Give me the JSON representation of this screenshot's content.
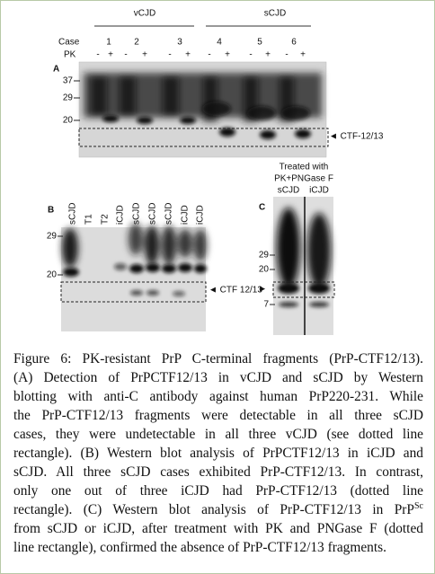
{
  "panel_a": {
    "label": "A",
    "groups": [
      "vCJD",
      "sCJD"
    ],
    "case_label": "Case",
    "cases": [
      "1",
      "2",
      "3",
      "4",
      "5",
      "6"
    ],
    "pk_label": "PK",
    "pk": [
      "-",
      "+",
      "-",
      "+",
      "-",
      "+",
      "-",
      "+",
      "-",
      "+",
      "-",
      "+"
    ],
    "markers": [
      "37",
      "29",
      "20"
    ],
    "annotation": "◄ CTF-12/13"
  },
  "panel_b": {
    "label": "B",
    "lanes": [
      "sCJD",
      "T1",
      "T2",
      "iCJD",
      "sCJD",
      "sCJD",
      "sCJD",
      "iCJD",
      "iCJD"
    ],
    "markers": [
      "29",
      "20"
    ],
    "annotation": "◄ CTF 12/13"
  },
  "panel_c": {
    "label": "C",
    "header": [
      "Treated with",
      "PK+PNGase F"
    ],
    "lanes": [
      "sCJD",
      "iCJD"
    ],
    "markers": [
      "29",
      "20",
      "7"
    ],
    "arrow": "►"
  },
  "caption": {
    "lines": [
      "Figure 6: PK-resistant PrP C-terminal fragments (PrP-CTF12/13).",
      "(A) Detection of PrPCTF12/13 in vCJD and sCJD by Western",
      "blotting with anti-C antibody against human PrP220-231. While",
      "the PrP-CTF12/13 fragments were detectable in all three sCJD",
      "cases, they were undetectable in all three vCJD (see dotted line",
      "rectangle). (B) Western blot analysis of PrPCTF12/13 in iCJD and",
      "sCJD. All three sCJD cases exhibited PrP-CTF12/13. In contrast,",
      "only one out of three iCJD had PrP-CTF12/13 (dotted line",
      "rectangle). (C) Western blot analysis of PrP-CTF12/13 in PrP",
      "from sCJD or iCJD, after treatment with PK and PNGase F (dotted",
      "line rectangle), confirmed the absence of PrP-CTF12/13 fragments."
    ],
    "superscript": "Sc"
  }
}
